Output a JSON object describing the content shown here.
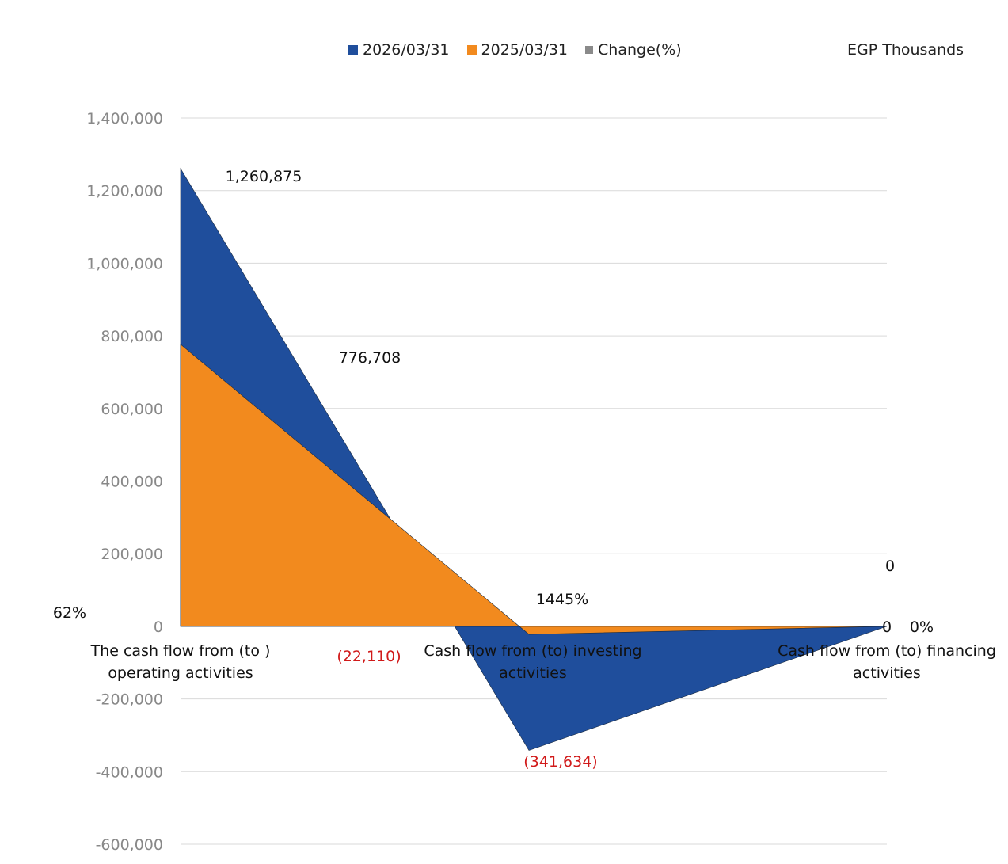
{
  "chart_data": {
    "type": "area",
    "categories": [
      [
        "The cash flow from (to )",
        "operating activities"
      ],
      [
        "Cash flow from (to) investing",
        "activities"
      ],
      [
        "Cash flow from (to) financing",
        "activities"
      ]
    ],
    "series": [
      {
        "name": "2026/03/31",
        "values": [
          1260875,
          -341634,
          0
        ],
        "color": "#1f4e9c"
      },
      {
        "name": "2025/03/31",
        "values": [
          776708,
          -22110,
          0
        ],
        "color": "#f28a1e"
      },
      {
        "name": "Change(%)",
        "values": [
          "62%",
          "1445%",
          "0%"
        ],
        "color": "#8a8a8a"
      }
    ],
    "data_labels": {
      "2026/03/31": [
        "1,260,875",
        "(341,634)",
        "0"
      ],
      "2025/03/31": [
        "776,708",
        "(22,110)",
        "0"
      ],
      "Change(%)": [
        "62%",
        "1445%",
        "0%"
      ]
    },
    "units_label": "EGP Thousands",
    "ylim": [
      -600000,
      1400000
    ],
    "yticks": [
      1400000,
      1200000,
      1000000,
      800000,
      600000,
      400000,
      200000,
      0,
      -200000,
      -400000,
      -600000
    ],
    "ytick_labels": [
      "1,400,000",
      "1,200,000",
      "1,000,000",
      "800,000",
      "600,000",
      "400,000",
      "200,000",
      "0",
      "-200,000",
      "-400,000",
      "-600,000"
    ],
    "grid": true,
    "legend_position": "top"
  }
}
